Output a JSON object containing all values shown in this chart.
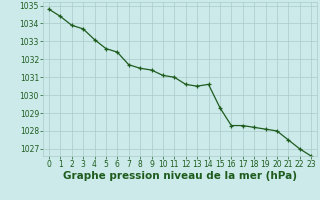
{
  "x": [
    0,
    1,
    2,
    3,
    4,
    5,
    6,
    7,
    8,
    9,
    10,
    11,
    12,
    13,
    14,
    15,
    16,
    17,
    18,
    19,
    20,
    21,
    22,
    23
  ],
  "y": [
    1034.8,
    1034.4,
    1033.9,
    1033.7,
    1033.1,
    1032.6,
    1032.4,
    1031.7,
    1031.5,
    1031.4,
    1031.1,
    1031.0,
    1030.6,
    1030.5,
    1030.6,
    1029.3,
    1028.3,
    1028.3,
    1028.2,
    1028.1,
    1028.0,
    1027.5,
    1027.0,
    1026.6
  ],
  "ylim_min": 1026.6,
  "ylim_max": 1035.2,
  "yticks": [
    1027,
    1028,
    1029,
    1030,
    1031,
    1032,
    1033,
    1034,
    1035
  ],
  "xticks": [
    0,
    1,
    2,
    3,
    4,
    5,
    6,
    7,
    8,
    9,
    10,
    11,
    12,
    13,
    14,
    15,
    16,
    17,
    18,
    19,
    20,
    21,
    22,
    23
  ],
  "xlabel": "Graphe pression niveau de la mer (hPa)",
  "line_color": "#1e5c1e",
  "marker": "+",
  "bg_color": "#cceaea",
  "grid_color": "#aacaca",
  "tick_color": "#1e5c1e",
  "label_color": "#1e5c1e",
  "tick_fontsize": 5.5,
  "xlabel_fontsize": 7.5,
  "linewidth": 0.9,
  "markersize": 3.5,
  "markeredgewidth": 0.9
}
